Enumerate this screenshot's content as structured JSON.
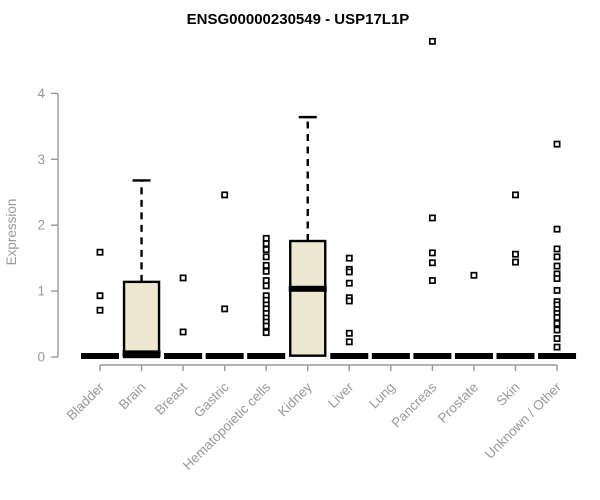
{
  "chart_data": {
    "type": "boxplot",
    "title": "ENSG00000230549 - USP17L1P",
    "xlabel": "",
    "ylabel": "Expression",
    "ylim": [
      0,
      4
    ],
    "yticks": [
      0,
      1,
      2,
      3,
      4
    ],
    "grid": false,
    "legend": false,
    "title_color": "#000000",
    "axis_color": "#999999",
    "box_fill_color": "#EDE8CF",
    "box_border_color": "#000000",
    "outlier_marker": "open-square",
    "categories": [
      "Bladder",
      "Brain",
      "Breast",
      "Gastric",
      "Hematopoietic cells",
      "Kidney",
      "Liver",
      "Lung",
      "Pancreas",
      "Prostate",
      "Skin",
      "Unknown / Other"
    ],
    "boxes": [
      {
        "category": "Bladder",
        "q1": 0,
        "median": 0,
        "q3": 0,
        "whisker_low": 0,
        "whisker_high": 0,
        "outliers": [
          1.59,
          0.93,
          0.71
        ]
      },
      {
        "category": "Brain",
        "q1": 0,
        "median": 0.04,
        "q3": 1.14,
        "whisker_low": 0,
        "whisker_high": 2.68,
        "outliers": []
      },
      {
        "category": "Breast",
        "q1": 0,
        "median": 0,
        "q3": 0,
        "whisker_low": 0,
        "whisker_high": 0,
        "outliers": [
          1.2,
          0.38
        ]
      },
      {
        "category": "Gastric",
        "q1": 0,
        "median": 0,
        "q3": 0,
        "whisker_low": 0,
        "whisker_high": 0,
        "outliers": [
          2.46,
          0.73
        ]
      },
      {
        "category": "Hematopoietic cells",
        "q1": 0,
        "median": 0,
        "q3": 0,
        "whisker_low": 0,
        "whisker_high": 0,
        "outliers": [
          1.8,
          1.72,
          1.63,
          1.52,
          1.39,
          1.3,
          1.16,
          1.08,
          0.93,
          0.86,
          0.79,
          0.73,
          0.66,
          0.59,
          0.53,
          0.47,
          0.37
        ]
      },
      {
        "category": "Kidney",
        "q1": 0.02,
        "median": 1.02,
        "q3": 1.76,
        "whisker_low": 0.02,
        "whisker_high": 3.64,
        "outliers": []
      },
      {
        "category": "Liver",
        "q1": 0,
        "median": 0,
        "q3": 0,
        "whisker_low": 0,
        "whisker_high": 0,
        "outliers": [
          1.5,
          1.33,
          1.29,
          1.12,
          0.9,
          0.85,
          0.36,
          0.23
        ]
      },
      {
        "category": "Lung",
        "q1": 0,
        "median": 0,
        "q3": 0,
        "whisker_low": 0,
        "whisker_high": 0,
        "outliers": []
      },
      {
        "category": "Pancreas",
        "q1": 0,
        "median": 0,
        "q3": 0,
        "whisker_low": 0,
        "whisker_high": 0,
        "outliers": [
          4.79,
          2.11,
          1.58,
          1.43,
          1.16
        ]
      },
      {
        "category": "Prostate",
        "q1": 0,
        "median": 0,
        "q3": 0,
        "whisker_low": 0,
        "whisker_high": 0,
        "outliers": [
          1.24
        ]
      },
      {
        "category": "Skin",
        "q1": 0,
        "median": 0,
        "q3": 0,
        "whisker_low": 0,
        "whisker_high": 0,
        "outliers": [
          2.46,
          1.56,
          1.44
        ]
      },
      {
        "category": "Unknown / Other",
        "q1": 0,
        "median": 0,
        "q3": 0,
        "whisker_low": 0,
        "whisker_high": 0,
        "outliers": [
          3.23,
          1.94,
          1.64,
          1.52,
          1.38,
          1.26,
          1.19,
          1.01,
          0.84,
          0.79,
          0.72,
          0.66,
          0.6,
          0.51,
          0.41,
          0.28,
          0.15
        ]
      }
    ]
  }
}
